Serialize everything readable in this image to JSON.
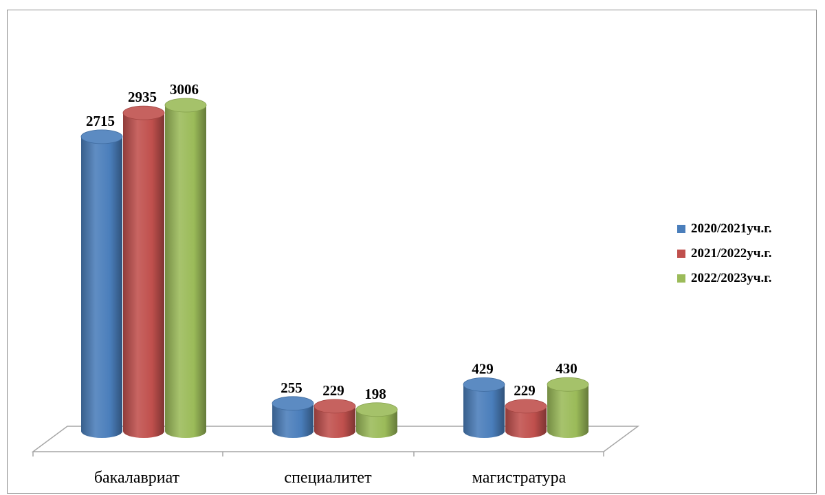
{
  "chart_data": {
    "type": "bar",
    "categories": [
      "бакалавриат",
      "специалитет",
      "магистратура"
    ],
    "series": [
      {
        "name": "2020/2021уч.г.",
        "values": [
          2715,
          255,
          429
        ],
        "color": "#4a7ebb"
      },
      {
        "name": "2021/2022уч.г.",
        "values": [
          2935,
          229,
          229
        ],
        "color": "#c0504d"
      },
      {
        "name": "2022/2023уч.г.",
        "values": [
          3006,
          198,
          430
        ],
        "color": "#9bbb59"
      }
    ],
    "legend_position": "right",
    "grid": false,
    "ylim": [
      0,
      3006
    ]
  }
}
